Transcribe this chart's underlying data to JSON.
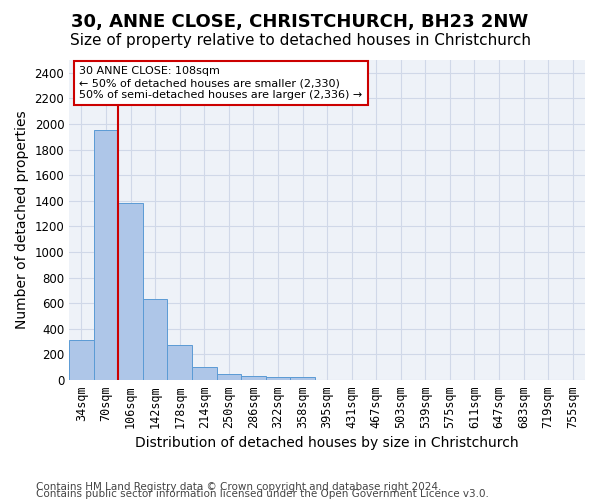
{
  "title": "30, ANNE CLOSE, CHRISTCHURCH, BH23 2NW",
  "subtitle": "Size of property relative to detached houses in Christchurch",
  "xlabel": "Distribution of detached houses by size in Christchurch",
  "ylabel": "Number of detached properties",
  "footer_line1": "Contains HM Land Registry data © Crown copyright and database right 2024.",
  "footer_line2": "Contains public sector information licensed under the Open Government Licence v3.0.",
  "bar_values": [
    315,
    1950,
    1380,
    630,
    275,
    100,
    50,
    35,
    25,
    20,
    0,
    0,
    0,
    0,
    0,
    0,
    0,
    0,
    0,
    0,
    0
  ],
  "x_labels": [
    "34sqm",
    "70sqm",
    "106sqm",
    "142sqm",
    "178sqm",
    "214sqm",
    "250sqm",
    "286sqm",
    "322sqm",
    "358sqm",
    "395sqm",
    "431sqm",
    "467sqm",
    "503sqm",
    "539sqm",
    "575sqm",
    "611sqm",
    "647sqm",
    "683sqm",
    "719sqm",
    "755sqm"
  ],
  "bar_color": "#aec6e8",
  "bar_edge_color": "#5b9bd5",
  "grid_color": "#d0d8e8",
  "background_color": "#eef2f8",
  "vline_color": "#cc0000",
  "annotation_text": "30 ANNE CLOSE: 108sqm\n← 50% of detached houses are smaller (2,330)\n50% of semi-detached houses are larger (2,336) →",
  "annotation_box_color": "#ffffff",
  "annotation_box_edge_color": "#cc0000",
  "ylim": [
    0,
    2500
  ],
  "yticks": [
    0,
    200,
    400,
    600,
    800,
    1000,
    1200,
    1400,
    1600,
    1800,
    2000,
    2200,
    2400
  ],
  "title_fontsize": 13,
  "subtitle_fontsize": 11,
  "xlabel_fontsize": 10,
  "ylabel_fontsize": 10,
  "tick_fontsize": 8.5,
  "annotation_fontsize": 8,
  "footer_fontsize": 7.5
}
